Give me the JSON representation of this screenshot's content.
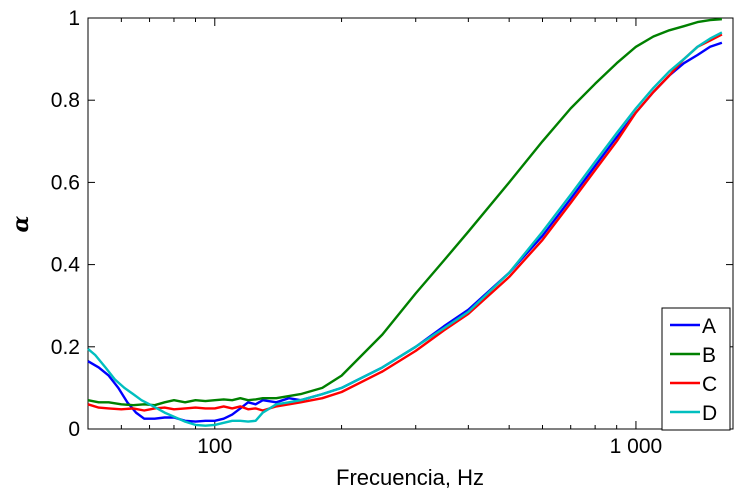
{
  "chart_data": {
    "type": "line",
    "title": "",
    "xlabel": "Frecuencia, Hz",
    "ylabel": "α",
    "x_scale": "log",
    "xlim": [
      50,
      1700
    ],
    "ylim": [
      0,
      1
    ],
    "x_ticks": [
      {
        "value": 100,
        "label": "100"
      },
      {
        "value": 1000,
        "label": "1 000"
      }
    ],
    "y_ticks": [
      {
        "value": 0,
        "label": "0"
      },
      {
        "value": 0.2,
        "label": "0.2"
      },
      {
        "value": 0.4,
        "label": "0.4"
      },
      {
        "value": 0.6,
        "label": "0.6"
      },
      {
        "value": 0.8,
        "label": "0.8"
      },
      {
        "value": 1,
        "label": "1"
      }
    ],
    "grid": false,
    "legend_position": "bottom-right",
    "series": [
      {
        "name": "A",
        "color": "#0000ff",
        "points": [
          [
            50,
            0.165
          ],
          [
            53,
            0.15
          ],
          [
            56,
            0.13
          ],
          [
            59,
            0.1
          ],
          [
            62,
            0.065
          ],
          [
            65,
            0.04
          ],
          [
            68,
            0.025
          ],
          [
            72,
            0.025
          ],
          [
            76,
            0.028
          ],
          [
            80,
            0.028
          ],
          [
            85,
            0.02
          ],
          [
            90,
            0.018
          ],
          [
            95,
            0.02
          ],
          [
            100,
            0.02
          ],
          [
            105,
            0.025
          ],
          [
            110,
            0.035
          ],
          [
            115,
            0.05
          ],
          [
            120,
            0.065
          ],
          [
            125,
            0.06
          ],
          [
            130,
            0.07
          ],
          [
            140,
            0.065
          ],
          [
            150,
            0.075
          ],
          [
            160,
            0.07
          ],
          [
            180,
            0.085
          ],
          [
            200,
            0.1
          ],
          [
            250,
            0.15
          ],
          [
            300,
            0.2
          ],
          [
            350,
            0.25
          ],
          [
            400,
            0.29
          ],
          [
            500,
            0.38
          ],
          [
            600,
            0.47
          ],
          [
            700,
            0.56
          ],
          [
            800,
            0.64
          ],
          [
            900,
            0.71
          ],
          [
            1000,
            0.77
          ],
          [
            1100,
            0.82
          ],
          [
            1200,
            0.86
          ],
          [
            1300,
            0.89
          ],
          [
            1400,
            0.91
          ],
          [
            1500,
            0.93
          ],
          [
            1600,
            0.94
          ]
        ]
      },
      {
        "name": "B",
        "color": "#008000",
        "points": [
          [
            50,
            0.07
          ],
          [
            53,
            0.065
          ],
          [
            56,
            0.065
          ],
          [
            60,
            0.06
          ],
          [
            64,
            0.058
          ],
          [
            68,
            0.06
          ],
          [
            72,
            0.058
          ],
          [
            76,
            0.065
          ],
          [
            80,
            0.07
          ],
          [
            85,
            0.065
          ],
          [
            90,
            0.07
          ],
          [
            95,
            0.068
          ],
          [
            100,
            0.07
          ],
          [
            105,
            0.072
          ],
          [
            110,
            0.07
          ],
          [
            115,
            0.075
          ],
          [
            120,
            0.07
          ],
          [
            125,
            0.072
          ],
          [
            130,
            0.075
          ],
          [
            140,
            0.075
          ],
          [
            150,
            0.08
          ],
          [
            160,
            0.085
          ],
          [
            180,
            0.1
          ],
          [
            200,
            0.13
          ],
          [
            250,
            0.23
          ],
          [
            300,
            0.33
          ],
          [
            350,
            0.41
          ],
          [
            400,
            0.48
          ],
          [
            500,
            0.6
          ],
          [
            600,
            0.7
          ],
          [
            700,
            0.78
          ],
          [
            800,
            0.84
          ],
          [
            900,
            0.89
          ],
          [
            1000,
            0.93
          ],
          [
            1100,
            0.955
          ],
          [
            1200,
            0.97
          ],
          [
            1300,
            0.98
          ],
          [
            1400,
            0.99
          ],
          [
            1500,
            0.995
          ],
          [
            1600,
            0.997
          ]
        ]
      },
      {
        "name": "C",
        "color": "#ff0000",
        "points": [
          [
            50,
            0.06
          ],
          [
            53,
            0.052
          ],
          [
            56,
            0.05
          ],
          [
            60,
            0.048
          ],
          [
            64,
            0.05
          ],
          [
            68,
            0.045
          ],
          [
            72,
            0.05
          ],
          [
            76,
            0.052
          ],
          [
            80,
            0.048
          ],
          [
            85,
            0.05
          ],
          [
            90,
            0.052
          ],
          [
            95,
            0.05
          ],
          [
            100,
            0.05
          ],
          [
            105,
            0.055
          ],
          [
            110,
            0.05
          ],
          [
            115,
            0.055
          ],
          [
            120,
            0.048
          ],
          [
            125,
            0.05
          ],
          [
            130,
            0.045
          ],
          [
            140,
            0.055
          ],
          [
            150,
            0.06
          ],
          [
            160,
            0.065
          ],
          [
            180,
            0.075
          ],
          [
            200,
            0.09
          ],
          [
            250,
            0.14
          ],
          [
            300,
            0.19
          ],
          [
            350,
            0.24
          ],
          [
            400,
            0.28
          ],
          [
            500,
            0.37
          ],
          [
            600,
            0.46
          ],
          [
            700,
            0.55
          ],
          [
            800,
            0.63
          ],
          [
            900,
            0.7
          ],
          [
            1000,
            0.77
          ],
          [
            1100,
            0.82
          ],
          [
            1200,
            0.86
          ],
          [
            1300,
            0.9
          ],
          [
            1400,
            0.93
          ],
          [
            1500,
            0.945
          ],
          [
            1600,
            0.96
          ]
        ]
      },
      {
        "name": "D",
        "color": "#00bfbf",
        "points": [
          [
            50,
            0.195
          ],
          [
            52,
            0.18
          ],
          [
            55,
            0.15
          ],
          [
            58,
            0.12
          ],
          [
            61,
            0.1
          ],
          [
            64,
            0.085
          ],
          [
            67,
            0.07
          ],
          [
            70,
            0.06
          ],
          [
            73,
            0.05
          ],
          [
            76,
            0.04
          ],
          [
            80,
            0.03
          ],
          [
            85,
            0.018
          ],
          [
            90,
            0.01
          ],
          [
            95,
            0.008
          ],
          [
            100,
            0.01
          ],
          [
            105,
            0.015
          ],
          [
            110,
            0.02
          ],
          [
            115,
            0.02
          ],
          [
            120,
            0.018
          ],
          [
            125,
            0.02
          ],
          [
            130,
            0.04
          ],
          [
            140,
            0.06
          ],
          [
            150,
            0.065
          ],
          [
            160,
            0.07
          ],
          [
            180,
            0.085
          ],
          [
            200,
            0.1
          ],
          [
            250,
            0.15
          ],
          [
            300,
            0.2
          ],
          [
            350,
            0.245
          ],
          [
            400,
            0.285
          ],
          [
            500,
            0.38
          ],
          [
            600,
            0.48
          ],
          [
            700,
            0.57
          ],
          [
            800,
            0.65
          ],
          [
            900,
            0.72
          ],
          [
            1000,
            0.78
          ],
          [
            1100,
            0.83
          ],
          [
            1200,
            0.87
          ],
          [
            1300,
            0.9
          ],
          [
            1400,
            0.93
          ],
          [
            1500,
            0.95
          ],
          [
            1600,
            0.965
          ]
        ]
      }
    ]
  }
}
